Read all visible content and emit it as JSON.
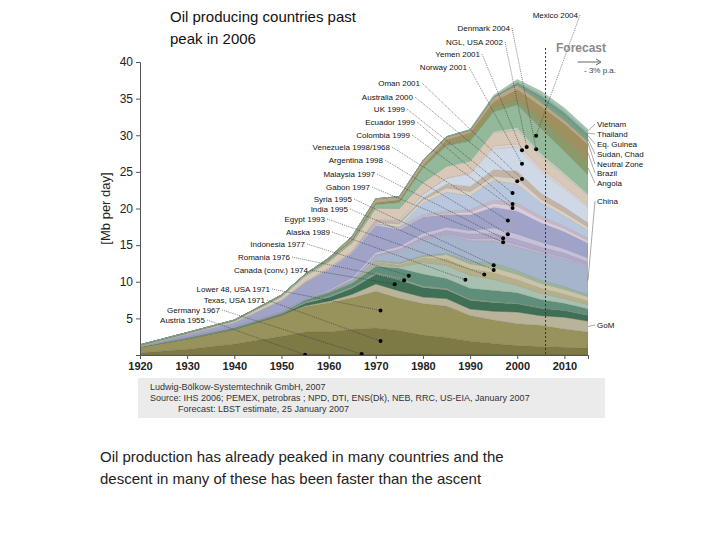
{
  "chart_data": {
    "type": "area",
    "stacked": true,
    "title": "Oil producing countries past peak in 2006",
    "y_label": "[Mb per day]",
    "caption": "Oil production has already peaked in many countries and the descent in many of these has been faster than the ascent",
    "source": [
      "Ludwig-Bölkow-Systemtechnik GmbH, 2007",
      "Source: IHS 2006; PEMEX, petrobras ; NPD, DTI, ENS(Dk), NEB, RRC, US-EIA, January 2007",
      "Forecast: LBST estimate, 25 January 2007"
    ],
    "annotations": [
      {
        "text": "Forecast",
        "x": 2006
      },
      {
        "text": "- 3% p.a."
      }
    ],
    "x": [
      1920,
      1930,
      1940,
      1950,
      1955,
      1960,
      1965,
      1970,
      1975,
      1980,
      1985,
      1990,
      1995,
      2000,
      2005,
      2010,
      2015
    ],
    "xlim": [
      1920,
      2015
    ],
    "xticks": [
      1920,
      1930,
      1940,
      1950,
      1960,
      1970,
      1980,
      1990,
      2000,
      2010
    ],
    "ylim": [
      0,
      40
    ],
    "yticks": [
      5,
      10,
      15,
      20,
      25,
      30,
      35,
      40
    ],
    "series": [
      {
        "name": "Austria 1955",
        "peak": 1955,
        "color": "#5a5a30",
        "values": [
          0,
          0,
          0,
          0.03,
          0.07,
          0.05,
          0.05,
          0.05,
          0.04,
          0.03,
          0.02,
          0.02,
          0.02,
          0.02,
          0.02,
          0.02,
          0.01
        ]
      },
      {
        "name": "Germany 1967",
        "peak": 1967,
        "color": "#6b6b3a",
        "values": [
          0,
          0,
          0.01,
          0.02,
          0.06,
          0.1,
          0.15,
          0.15,
          0.11,
          0.09,
          0.08,
          0.07,
          0.06,
          0.06,
          0.05,
          0.04,
          0.03
        ]
      },
      {
        "name": "Texas, USA 1971",
        "peak": 1971,
        "color": "#7d7a46",
        "values": [
          0.3,
          0.8,
          1.5,
          2.5,
          3,
          3,
          3.3,
          3.5,
          3.2,
          2.6,
          2.3,
          1.8,
          1.5,
          1.2,
          1.1,
          1,
          0.9
        ]
      },
      {
        "name": "Lower 48, USA 1971",
        "peak": 1971,
        "color": "#98935c",
        "values": [
          0.8,
          1.4,
          2,
          2.9,
          3.5,
          4,
          4.3,
          5,
          4.4,
          4.3,
          4.3,
          3.5,
          3.2,
          3,
          2.9,
          2.5,
          2.2
        ]
      },
      {
        "name": "GoM",
        "color": "#b8b49a",
        "values": [
          0,
          0,
          0,
          0,
          0.1,
          0.2,
          0.5,
          1,
          1,
          0.9,
          1,
          0.9,
          1.2,
          1.6,
          1.3,
          1.6,
          1.5
        ]
      },
      {
        "name": "Canada (conv.) 1974",
        "peak": 1974,
        "color": "#3f6f55",
        "values": [
          0,
          0,
          0,
          0.08,
          0.35,
          0.5,
          0.8,
          1.3,
          1.5,
          1.3,
          1.2,
          1.2,
          1.2,
          1.1,
          1,
          0.9,
          0.8
        ]
      },
      {
        "name": "Romania 1976",
        "peak": 1976,
        "color": "#8aa08a",
        "values": [
          0.02,
          0.1,
          0.12,
          0.09,
          0.2,
          0.23,
          0.26,
          0.28,
          0.3,
          0.25,
          0.22,
          0.16,
          0.14,
          0.13,
          0.11,
          0.1,
          0.09
        ]
      },
      {
        "name": "Indonesia 1977",
        "peak": 1977,
        "color": "#5f8f7a",
        "values": [
          0.05,
          0.1,
          0.15,
          0.13,
          0.24,
          0.42,
          0.48,
          0.85,
          1.3,
          1.58,
          1.33,
          1.46,
          1.5,
          1.4,
          1.1,
          0.9,
          0.8
        ]
      },
      {
        "name": "Alaska 1989",
        "peak": 1989,
        "color": "#a8c0b0",
        "values": [
          0,
          0,
          0,
          0,
          0,
          0,
          0.03,
          0.22,
          0.19,
          1.6,
          1.8,
          1.8,
          1.5,
          1,
          0.85,
          0.65,
          0.55
        ]
      },
      {
        "name": "Egypt 1993",
        "peak": 1993,
        "color": "#b5b08a",
        "values": [
          0,
          0.01,
          0.02,
          0.05,
          0.04,
          0.06,
          0.12,
          0.33,
          0.24,
          0.6,
          0.87,
          0.87,
          0.9,
          0.78,
          0.67,
          0.6,
          0.5
        ]
      },
      {
        "name": "India 1995",
        "peak": 1995,
        "color": "#c9c4a8",
        "values": [
          0,
          0,
          0,
          0,
          0,
          0.01,
          0.06,
          0.14,
          0.16,
          0.18,
          0.6,
          0.66,
          0.74,
          0.73,
          0.7,
          0.65,
          0.6
        ]
      },
      {
        "name": "Syria 1995",
        "peak": 1995,
        "color": "#9ab59a",
        "values": [
          0,
          0,
          0,
          0,
          0,
          0,
          0,
          0.09,
          0.18,
          0.16,
          0.18,
          0.39,
          0.6,
          0.52,
          0.45,
          0.38,
          0.3
        ]
      },
      {
        "name": "China",
        "color": "#a6b4cc",
        "values": [
          0,
          0,
          0,
          0,
          0,
          0.1,
          0.2,
          0.6,
          1.5,
          2.1,
          2.5,
          2.8,
          3,
          3.2,
          3.6,
          3.8,
          3.8
        ]
      },
      {
        "name": "Gabon 1997",
        "peak": 1997,
        "color": "#c4b7d0",
        "values": [
          0,
          0,
          0,
          0,
          0,
          0.02,
          0.03,
          0.11,
          0.22,
          0.17,
          0.17,
          0.27,
          0.36,
          0.33,
          0.27,
          0.22,
          0.18
        ]
      },
      {
        "name": "Malaysia 1997",
        "peak": 1997,
        "color": "#b0a9c9",
        "values": [
          0,
          0,
          0,
          0,
          0,
          0,
          0,
          0.02,
          0.1,
          0.28,
          0.45,
          0.62,
          0.7,
          0.69,
          0.63,
          0.55,
          0.48
        ]
      },
      {
        "name": "Argentina 1998",
        "peak": 1998,
        "color": "#c6c0d9",
        "values": [
          0.02,
          0.05,
          0.07,
          0.07,
          0.09,
          0.18,
          0.27,
          0.39,
          0.4,
          0.49,
          0.46,
          0.48,
          0.75,
          0.77,
          0.69,
          0.6,
          0.52
        ]
      },
      {
        "name": "Venezuela 1998/1968",
        "peak": 1998,
        "color": "#9fa3c8",
        "values": [
          0.01,
          0.37,
          0.5,
          1.5,
          2.2,
          2.8,
          3.4,
          3.7,
          2.3,
          2.2,
          1.7,
          2.1,
          2.8,
          3.1,
          2.6,
          2.3,
          2
        ]
      },
      {
        "name": "Colombia 1999",
        "peak": 1999,
        "color": "#d6ccdc",
        "values": [
          0,
          0.02,
          0.07,
          0.09,
          0.11,
          0.15,
          0.2,
          0.22,
          0.16,
          0.13,
          0.18,
          0.44,
          0.58,
          0.69,
          0.53,
          0.45,
          0.38
        ]
      },
      {
        "name": "Ecuador 1999",
        "peak": 1999,
        "color": "#c9b8c4",
        "values": [
          0,
          0,
          0,
          0.01,
          0.01,
          0.01,
          0.01,
          0.01,
          0.16,
          0.2,
          0.28,
          0.29,
          0.39,
          0.4,
          0.38,
          0.33,
          0.28
        ]
      },
      {
        "name": "UK 1999",
        "peak": 1999,
        "color": "#b9c7de",
        "values": [
          0,
          0,
          0,
          0,
          0,
          0,
          0,
          0,
          0.03,
          1.6,
          2.6,
          1.9,
          2.7,
          2.6,
          1.8,
          1.4,
          1.1
        ]
      },
      {
        "name": "Australia 2000",
        "peak": 2000,
        "color": "#d9d2c4",
        "values": [
          0,
          0,
          0,
          0,
          0,
          0,
          0,
          0.17,
          0.4,
          0.4,
          0.6,
          0.6,
          0.6,
          0.8,
          0.55,
          0.5,
          0.42
        ]
      },
      {
        "name": "Oman 2001",
        "peak": 2001,
        "color": "#c4b4a8",
        "values": [
          0,
          0,
          0,
          0,
          0,
          0,
          0,
          0.33,
          0.34,
          0.29,
          0.5,
          0.69,
          0.86,
          0.96,
          0.78,
          0.7,
          0.6
        ]
      },
      {
        "name": "Norway 2001",
        "peak": 2001,
        "color": "#cfd9e6",
        "values": [
          0,
          0,
          0,
          0,
          0,
          0,
          0,
          0,
          0.19,
          0.5,
          0.8,
          1.7,
          2.9,
          3.3,
          3,
          2.5,
          2.1
        ]
      },
      {
        "name": "Yemen 2001",
        "peak": 2001,
        "color": "#e0d2d0",
        "values": [
          0,
          0,
          0,
          0,
          0,
          0,
          0,
          0,
          0,
          0,
          0,
          0.19,
          0.35,
          0.45,
          0.4,
          0.35,
          0.3
        ]
      },
      {
        "name": "NGL, USA 2002",
        "peak": 2002,
        "color": "#d8c8b8",
        "values": [
          0.03,
          0.1,
          0.2,
          0.5,
          0.8,
          0.9,
          1.2,
          1.6,
          1.6,
          1.6,
          1.6,
          1.5,
          1.8,
          1.9,
          1.7,
          1.5,
          1.3
        ]
      },
      {
        "name": "Denmark 2004",
        "peak": 2004,
        "color": "#bcd2c0",
        "values": [
          0,
          0,
          0,
          0,
          0,
          0,
          0,
          0,
          0.01,
          0.03,
          0.06,
          0.12,
          0.19,
          0.36,
          0.38,
          0.32,
          0.26
        ]
      },
      {
        "name": "Mexico 2004",
        "peak": 2004,
        "color": "#94b89a",
        "values": [
          0.16,
          0.11,
          0.13,
          0.2,
          0.25,
          0.28,
          0.35,
          0.5,
          0.8,
          2,
          2.8,
          2.7,
          2.7,
          3.1,
          3.4,
          3,
          2.6
        ]
      },
      {
        "name": "Angola",
        "color": "#8a9a6a",
        "values": [
          0,
          0,
          0,
          0,
          0,
          0,
          0,
          0.1,
          0.17,
          0.15,
          0.23,
          0.47,
          0.65,
          0.75,
          1.3,
          1.7,
          1.9
        ]
      },
      {
        "name": "Brazil",
        "color": "#a09060",
        "values": [
          0,
          0,
          0,
          0,
          0,
          0.08,
          0.1,
          0.17,
          0.18,
          0.19,
          0.56,
          0.65,
          0.7,
          1.3,
          1.7,
          2,
          2.2
        ]
      },
      {
        "name": "Neutral Zone",
        "color": "#b8a888",
        "values": [
          0,
          0,
          0,
          0,
          0,
          0.14,
          0.39,
          0.5,
          0.44,
          0.6,
          0.4,
          0.35,
          0.6,
          0.6,
          0.57,
          0.5,
          0.45
        ]
      },
      {
        "name": "Sudan, Chad",
        "color": "#7aa080",
        "values": [
          0,
          0,
          0,
          0,
          0,
          0,
          0,
          0,
          0,
          0,
          0,
          0,
          0.01,
          0.2,
          0.5,
          0.6,
          0.6
        ]
      },
      {
        "name": "Eq. Guinea",
        "color": "#6a9a90",
        "values": [
          0,
          0,
          0,
          0,
          0,
          0,
          0,
          0,
          0,
          0,
          0,
          0,
          0.01,
          0.1,
          0.35,
          0.4,
          0.4
        ]
      },
      {
        "name": "Thailand",
        "color": "#98b8a8",
        "values": [
          0,
          0,
          0,
          0,
          0,
          0,
          0,
          0,
          0,
          0,
          0.04,
          0.06,
          0.1,
          0.17,
          0.27,
          0.3,
          0.3
        ]
      },
      {
        "name": "Vietnam",
        "color": "#a8c8b0",
        "values": [
          0,
          0,
          0,
          0,
          0,
          0,
          0,
          0,
          0,
          0,
          0,
          0.04,
          0.15,
          0.3,
          0.38,
          0.35,
          0.32
        ]
      }
    ]
  }
}
